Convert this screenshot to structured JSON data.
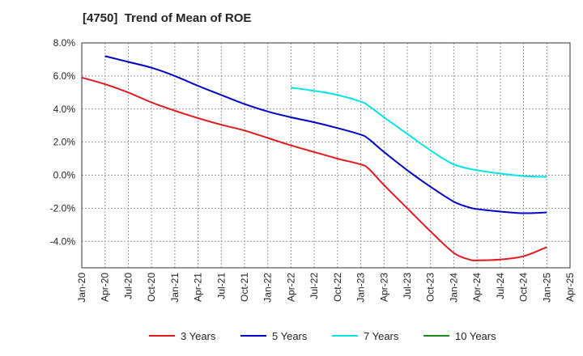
{
  "chart_data": {
    "type": "line",
    "title": "[4750]  Trend of Mean of ROE",
    "xlabel": "",
    "ylabel": "",
    "ylim": [
      -5.6,
      8.0
    ],
    "yticks": [
      8.0,
      6.0,
      4.0,
      2.0,
      0.0,
      -2.0,
      -4.0
    ],
    "ytick_labels": [
      "8.0%",
      "6.0%",
      "4.0%",
      "2.0%",
      "0.0%",
      "-2.0%",
      "-4.0%"
    ],
    "x_categories": [
      "Jan-20",
      "Apr-20",
      "Jul-20",
      "Oct-20",
      "Jan-21",
      "Apr-21",
      "Jul-21",
      "Oct-21",
      "Jan-22",
      "Apr-22",
      "Jul-22",
      "Oct-22",
      "Jan-23",
      "Apr-23",
      "Jul-23",
      "Oct-23",
      "Jan-24",
      "Apr-24",
      "Jul-24",
      "Oct-24",
      "Jan-25",
      "Apr-25"
    ],
    "grid": true,
    "legend_position": "bottom",
    "series": [
      {
        "name": "3 Years",
        "color": "#e31a1c",
        "points": [
          [
            "Jan-20",
            5.9
          ],
          [
            "Apr-20",
            5.5
          ],
          [
            "Jul-20",
            5.0
          ],
          [
            "Oct-20",
            4.4
          ],
          [
            "Jan-21",
            3.9
          ],
          [
            "Apr-21",
            3.45
          ],
          [
            "Jul-21",
            3.05
          ],
          [
            "Oct-21",
            2.7
          ],
          [
            "Jan-22",
            2.25
          ],
          [
            "Apr-22",
            1.8
          ],
          [
            "Jul-22",
            1.4
          ],
          [
            "Oct-22",
            1.0
          ],
          [
            "Jan-23",
            0.65
          ],
          [
            "Feb-23",
            0.4
          ],
          [
            "Apr-23",
            -0.6
          ],
          [
            "Jul-23",
            -2.0
          ],
          [
            "Oct-23",
            -3.4
          ],
          [
            "Jan-24",
            -4.7
          ],
          [
            "Mar-24",
            -5.1
          ],
          [
            "Apr-24",
            -5.15
          ],
          [
            "Jul-24",
            -5.1
          ],
          [
            "Oct-24",
            -4.9
          ],
          [
            "Jan-25",
            -4.35
          ]
        ]
      },
      {
        "name": "5 Years",
        "color": "#0000c8",
        "points": [
          [
            "Apr-20",
            7.2
          ],
          [
            "Jul-20",
            6.85
          ],
          [
            "Oct-20",
            6.5
          ],
          [
            "Jan-21",
            6.0
          ],
          [
            "Apr-21",
            5.4
          ],
          [
            "Jul-21",
            4.85
          ],
          [
            "Oct-21",
            4.3
          ],
          [
            "Jan-22",
            3.85
          ],
          [
            "Apr-22",
            3.5
          ],
          [
            "Jul-22",
            3.2
          ],
          [
            "Oct-22",
            2.85
          ],
          [
            "Jan-23",
            2.45
          ],
          [
            "Feb-23",
            2.2
          ],
          [
            "Apr-23",
            1.4
          ],
          [
            "Jul-23",
            0.3
          ],
          [
            "Oct-23",
            -0.7
          ],
          [
            "Jan-24",
            -1.6
          ],
          [
            "Mar-24",
            -1.95
          ],
          [
            "Apr-24",
            -2.05
          ],
          [
            "Jul-24",
            -2.2
          ],
          [
            "Oct-24",
            -2.3
          ],
          [
            "Jan-25",
            -2.25
          ]
        ]
      },
      {
        "name": "7 Years",
        "color": "#00e5e5",
        "points": [
          [
            "Apr-22",
            5.3
          ],
          [
            "Jul-22",
            5.1
          ],
          [
            "Oct-22",
            4.85
          ],
          [
            "Jan-23",
            4.45
          ],
          [
            "Feb-23",
            4.2
          ],
          [
            "Apr-23",
            3.5
          ],
          [
            "Jul-23",
            2.5
          ],
          [
            "Oct-23",
            1.5
          ],
          [
            "Jan-24",
            0.65
          ],
          [
            "Apr-24",
            0.3
          ],
          [
            "Jul-24",
            0.1
          ],
          [
            "Oct-24",
            -0.05
          ],
          [
            "Jan-25",
            -0.1
          ]
        ]
      },
      {
        "name": "10 Years",
        "color": "#1a8c1a",
        "points": []
      }
    ]
  }
}
